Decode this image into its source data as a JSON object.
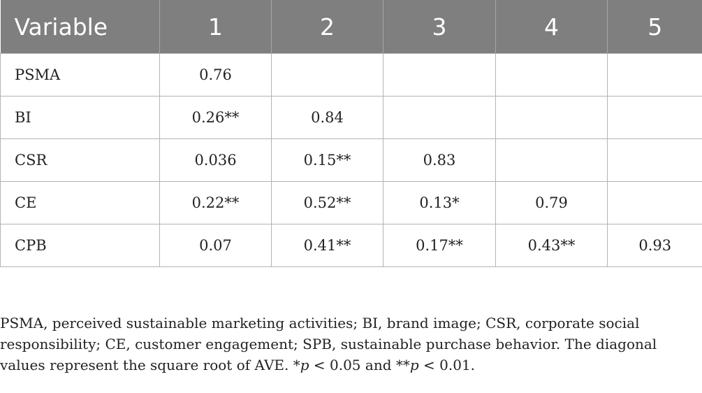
{
  "table": {
    "headers": [
      "Variable",
      "1",
      "2",
      "3",
      "4",
      "5"
    ],
    "rows": [
      [
        "PSMA",
        "0.76",
        "",
        "",
        "",
        ""
      ],
      [
        "BI",
        "0.26**",
        "0.84",
        "",
        "",
        ""
      ],
      [
        "CSR",
        "0.036",
        "0.15**",
        "0.83",
        "",
        ""
      ],
      [
        "CE",
        "0.22**",
        "0.52**",
        "0.13*",
        "0.79",
        ""
      ],
      [
        "CPB",
        "0.07",
        "0.41**",
        "0.17**",
        "0.43**",
        "0.93"
      ]
    ]
  },
  "footnote": {
    "text1": "PSMA, perceived sustainable marketing activities; BI, brand image; CSR, corporate social responsibility; CE, customer engagement; SPB, sustainable purchase behavior. The diagonal values represent the square root of AVE. *",
    "p1": "p",
    "text2": " < 0.05 and **",
    "p2": "p",
    "text3": " < 0.01."
  }
}
